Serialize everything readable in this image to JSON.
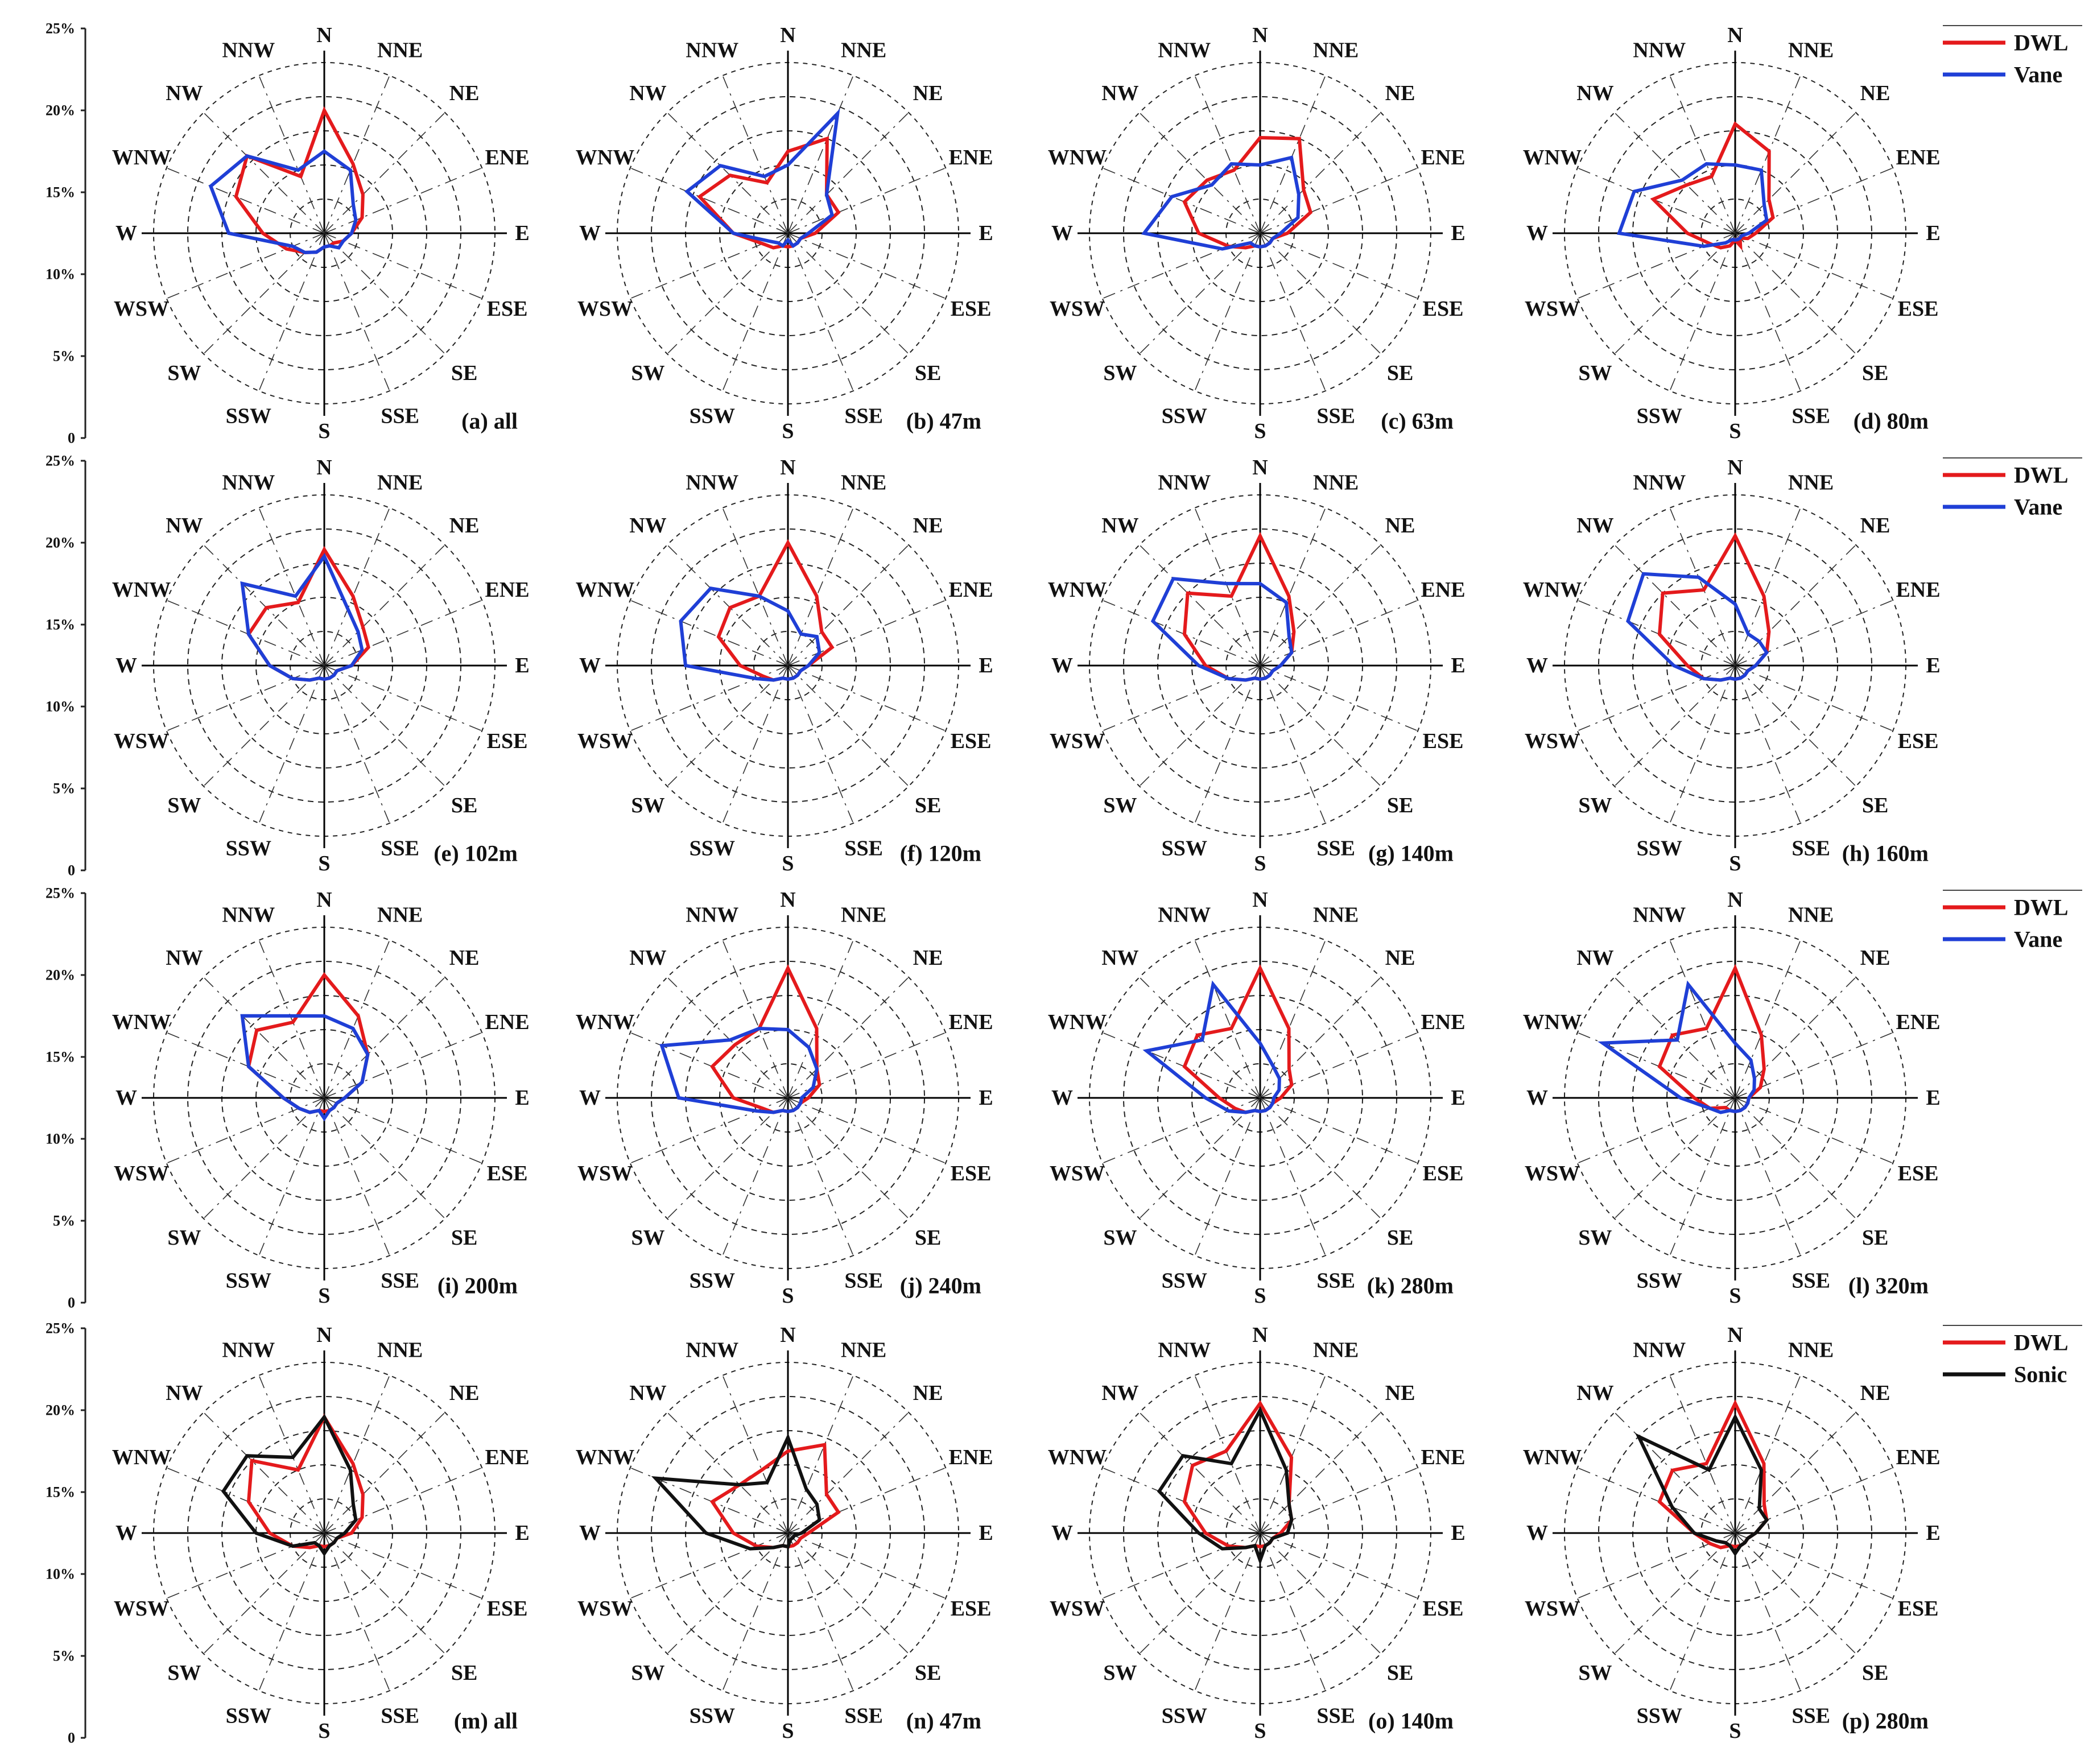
{
  "directions": [
    "N",
    "NNE",
    "NE",
    "ENE",
    "E",
    "ESE",
    "SE",
    "SSE",
    "S",
    "SSW",
    "SW",
    "WSW",
    "W",
    "WNW",
    "NW",
    "NNW"
  ],
  "axis": {
    "ticks": [
      "0",
      "5%",
      "10%",
      "15%",
      "20%",
      "25%"
    ]
  },
  "legends": [
    [
      {
        "label": "DWL",
        "color": "#e41a1c"
      },
      {
        "label": "Vane",
        "color": "#1f3fd6"
      }
    ],
    [
      {
        "label": "DWL",
        "color": "#e41a1c"
      },
      {
        "label": "Vane",
        "color": "#1f3fd6"
      }
    ],
    [
      {
        "label": "DWL",
        "color": "#e41a1c"
      },
      {
        "label": "Vane",
        "color": "#1f3fd6"
      }
    ],
    [
      {
        "label": "DWL",
        "color": "#e41a1c"
      },
      {
        "label": "Sonic",
        "color": "#111111"
      }
    ]
  ],
  "chart_data": [
    {
      "type": "radar",
      "label": "(a) all",
      "rmax": 25,
      "series": [
        {
          "name": "DWL",
          "color": "#e41a1c",
          "values": [
            18,
            11,
            8,
            6,
            4,
            3,
            2,
            2,
            2,
            3,
            4,
            6,
            9,
            14,
            16,
            9
          ]
        },
        {
          "name": "Vane",
          "color": "#1f3fd6",
          "values": [
            12,
            10,
            6,
            5,
            4,
            3,
            3,
            2,
            2,
            3,
            4,
            5,
            14,
            18,
            16,
            10
          ]
        }
      ]
    },
    {
      "type": "radar",
      "label": "(b) 47m",
      "rmax": 25,
      "series": [
        {
          "name": "DWL",
          "color": "#e41a1c",
          "values": [
            12,
            15,
            8,
            8,
            4,
            2,
            2,
            2,
            2,
            2,
            3,
            4,
            8,
            14,
            12,
            8
          ]
        },
        {
          "name": "Vane",
          "color": "#1f3fd6",
          "values": [
            10,
            19,
            8,
            7,
            3,
            2,
            2,
            2,
            1,
            2,
            2,
            3,
            8,
            16,
            14,
            9
          ]
        }
      ]
    },
    {
      "type": "radar",
      "label": "(c) 63m",
      "rmax": 25,
      "series": [
        {
          "name": "DWL",
          "color": "#e41a1c",
          "values": [
            14,
            15,
            9,
            8,
            4,
            2,
            2,
            2,
            2,
            2,
            3,
            5,
            9,
            12,
            11,
            10
          ]
        },
        {
          "name": "Vane",
          "color": "#1f3fd6",
          "values": [
            10,
            12,
            8,
            6,
            3,
            2,
            2,
            2,
            2,
            2,
            2,
            6,
            17,
            14,
            10,
            11
          ]
        }
      ]
    },
    {
      "type": "radar",
      "label": "(d) 80m",
      "rmax": 25,
      "series": [
        {
          "name": "DWL",
          "color": "#e41a1c",
          "values": [
            16,
            13,
            7,
            6,
            3,
            2,
            1,
            2,
            1,
            2,
            3,
            4,
            7,
            13,
            10,
            9
          ]
        },
        {
          "name": "Vane",
          "color": "#1f3fd6",
          "values": [
            10,
            10,
            6,
            5,
            2,
            1,
            1,
            1,
            1,
            1,
            2,
            5,
            17,
            16,
            11,
            11
          ]
        }
      ]
    },
    {
      "type": "radar",
      "label": "(e) 102m",
      "rmax": 25,
      "series": [
        {
          "name": "DWL",
          "color": "#e41a1c",
          "values": [
            17,
            11,
            8,
            7,
            4,
            2,
            2,
            2,
            2,
            2,
            3,
            5,
            8,
            12,
            12,
            10
          ]
        },
        {
          "name": "Vane",
          "color": "#1f3fd6",
          "values": [
            16,
            9,
            7,
            6,
            4,
            2,
            2,
            2,
            2,
            2,
            3,
            5,
            8,
            12,
            17,
            11
          ]
        }
      ]
    },
    {
      "type": "radar",
      "label": "(f) 120m",
      "rmax": 25,
      "series": [
        {
          "name": "DWL",
          "color": "#e41a1c",
          "values": [
            18,
            11,
            7,
            7,
            3,
            2,
            2,
            2,
            2,
            2,
            3,
            4,
            7,
            11,
            12,
            11
          ]
        },
        {
          "name": "Vane",
          "color": "#1f3fd6",
          "values": [
            8,
            5,
            6,
            5,
            3,
            2,
            2,
            2,
            2,
            2,
            3,
            5,
            15,
            17,
            16,
            11
          ]
        }
      ]
    },
    {
      "type": "radar",
      "label": "(g) 140m",
      "rmax": 25,
      "series": [
        {
          "name": "DWL",
          "color": "#e41a1c",
          "values": [
            19,
            11,
            7,
            5,
            3,
            2,
            2,
            2,
            2,
            2,
            3,
            5,
            8,
            12,
            15,
            11
          ]
        },
        {
          "name": "Vane",
          "color": "#1f3fd6",
          "values": [
            12,
            10,
            6,
            5,
            3,
            2,
            2,
            2,
            2,
            2,
            3,
            5,
            9,
            17,
            18,
            13
          ]
        }
      ]
    },
    {
      "type": "radar",
      "label": "(h) 160m",
      "rmax": 25,
      "series": [
        {
          "name": "DWL",
          "color": "#e41a1c",
          "values": [
            19,
            11,
            7,
            5,
            3,
            2,
            2,
            2,
            2,
            2,
            3,
            5,
            7,
            12,
            15,
            12
          ]
        },
        {
          "name": "Vane",
          "color": "#1f3fd6",
          "values": [
            9,
            5,
            5,
            5,
            3,
            2,
            2,
            2,
            2,
            2,
            3,
            5,
            9,
            17,
            19,
            14
          ]
        }
      ]
    },
    {
      "type": "radar",
      "label": "(i) 200m",
      "rmax": 25,
      "series": [
        {
          "name": "DWL",
          "color": "#e41a1c",
          "values": [
            18,
            13,
            9,
            6,
            3,
            2,
            2,
            2,
            2,
            2,
            3,
            4,
            6,
            12,
            14,
            12
          ]
        },
        {
          "name": "Vane",
          "color": "#1f3fd6",
          "values": [
            12,
            11,
            9,
            6,
            3,
            2,
            2,
            2,
            3,
            2,
            3,
            4,
            6,
            12,
            17,
            13
          ]
        }
      ]
    },
    {
      "type": "radar",
      "label": "(j) 240m",
      "rmax": 25,
      "series": [
        {
          "name": "DWL",
          "color": "#e41a1c",
          "values": [
            19,
            11,
            6,
            5,
            3,
            2,
            2,
            2,
            2,
            2,
            3,
            4,
            8,
            12,
            11,
            11
          ]
        },
        {
          "name": "Vane",
          "color": "#1f3fd6",
          "values": [
            10,
            8,
            6,
            4,
            2,
            2,
            2,
            2,
            2,
            2,
            3,
            5,
            16,
            20,
            12,
            11
          ]
        }
      ]
    },
    {
      "type": "radar",
      "label": "(k) 280m",
      "rmax": 25,
      "series": [
        {
          "name": "DWL",
          "color": "#e41a1c",
          "values": [
            19,
            11,
            6,
            5,
            3,
            2,
            2,
            2,
            2,
            2,
            3,
            4,
            6,
            12,
            13,
            11
          ]
        },
        {
          "name": "Vane",
          "color": "#1f3fd6",
          "values": [
            8,
            5,
            4,
            3,
            2,
            2,
            2,
            2,
            2,
            2,
            3,
            5,
            8,
            18,
            12,
            18
          ]
        }
      ]
    },
    {
      "type": "radar",
      "label": "(l) 320m",
      "rmax": 25,
      "series": [
        {
          "name": "DWL",
          "color": "#e41a1c",
          "values": [
            19,
            10,
            6,
            4,
            2,
            2,
            2,
            2,
            2,
            2,
            2,
            4,
            6,
            12,
            13,
            11
          ]
        },
        {
          "name": "Vane",
          "color": "#1f3fd6",
          "values": [
            8,
            6,
            4,
            3,
            2,
            2,
            2,
            2,
            2,
            2,
            3,
            4,
            8,
            21,
            12,
            18
          ]
        }
      ]
    },
    {
      "type": "radar",
      "label": "(m) all",
      "rmax": 25,
      "series": [
        {
          "name": "DWL",
          "color": "#e41a1c",
          "values": [
            17,
            11,
            8,
            6,
            4,
            2,
            2,
            2,
            2,
            2,
            3,
            5,
            8,
            12,
            15,
            10
          ]
        },
        {
          "name": "Sonic",
          "color": "#111111",
          "values": [
            17,
            10,
            6,
            5,
            3,
            2,
            2,
            2,
            3,
            2,
            2,
            5,
            10,
            16,
            16,
            12
          ]
        }
      ]
    },
    {
      "type": "radar",
      "label": "(n) 47m",
      "rmax": 25,
      "series": [
        {
          "name": "DWL",
          "color": "#e41a1c",
          "values": [
            12,
            14,
            8,
            8,
            3,
            2,
            2,
            2,
            2,
            2,
            3,
            5,
            8,
            12,
            10,
            10
          ]
        },
        {
          "name": "Sonic",
          "color": "#111111",
          "values": [
            14,
            7,
            6,
            5,
            2,
            1,
            1,
            1,
            2,
            2,
            3,
            6,
            12,
            21,
            10,
            8
          ]
        }
      ]
    },
    {
      "type": "radar",
      "label": "(o) 140m",
      "rmax": 25,
      "series": [
        {
          "name": "DWL",
          "color": "#e41a1c",
          "values": [
            19,
            12,
            6,
            5,
            3,
            2,
            2,
            2,
            2,
            2,
            3,
            5,
            8,
            12,
            14,
            13
          ]
        },
        {
          "name": "Sonic",
          "color": "#111111",
          "values": [
            18,
            10,
            6,
            5,
            4,
            2,
            2,
            2,
            4,
            2,
            3,
            6,
            9,
            16,
            16,
            11
          ]
        }
      ]
    },
    {
      "type": "radar",
      "label": "(p) 280m",
      "rmax": 25,
      "series": [
        {
          "name": "DWL",
          "color": "#e41a1c",
          "values": [
            19,
            11,
            6,
            5,
            3,
            2,
            2,
            2,
            2,
            2,
            3,
            4,
            6,
            12,
            13,
            11
          ]
        },
        {
          "name": "Sonic",
          "color": "#111111",
          "values": [
            17,
            10,
            5,
            5,
            3,
            2,
            2,
            2,
            3,
            2,
            2,
            3,
            6,
            10,
            20,
            10
          ]
        }
      ]
    }
  ]
}
